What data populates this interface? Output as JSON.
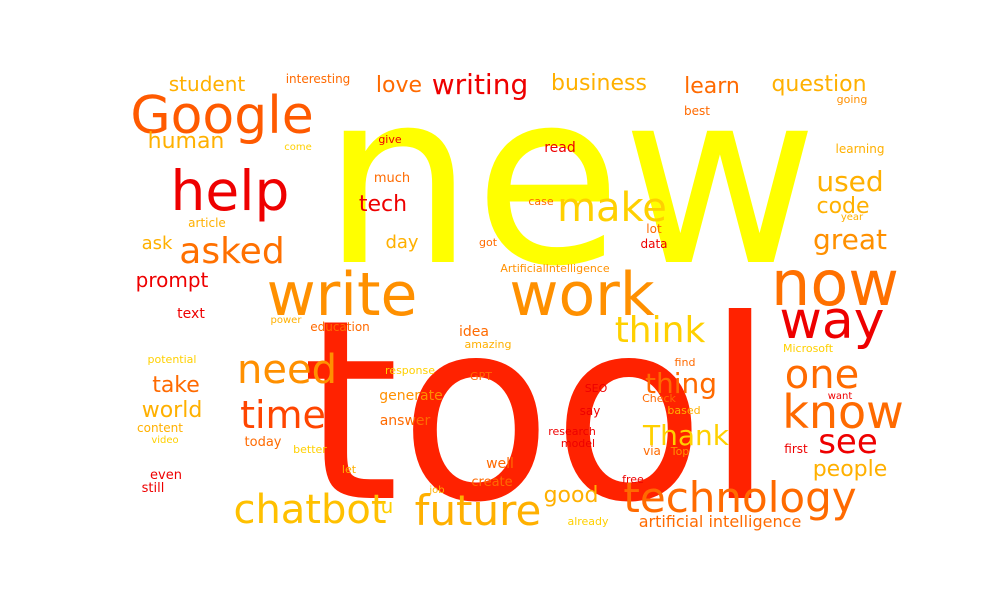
{
  "palette": {
    "yellow": "#ffff00",
    "gold": "#ffd000",
    "amber": "#ffb000",
    "orange": "#ff9000",
    "dark_orange": "#ff6a00",
    "red_orange": "#ff3a00",
    "red": "#ee0000"
  },
  "words": [
    {
      "text": "new",
      "color": "#ffff00"
    },
    {
      "text": "tool",
      "color": "#ff2200"
    },
    {
      "text": "write",
      "color": "#ff9000"
    },
    {
      "text": "work",
      "color": "#ff9000"
    },
    {
      "text": "now",
      "color": "#ff7000"
    },
    {
      "text": "Google",
      "color": "#ff5a00"
    },
    {
      "text": "help",
      "color": "#ee0000"
    },
    {
      "text": "technology",
      "color": "#ff6a00"
    },
    {
      "text": "chatbot",
      "color": "#ffc000"
    },
    {
      "text": "future",
      "color": "#ffb000"
    },
    {
      "text": "way",
      "color": "#ee0000"
    },
    {
      "text": "know",
      "color": "#ff6a00"
    },
    {
      "text": "one",
      "color": "#ff6a00"
    },
    {
      "text": "need",
      "color": "#ff9000"
    },
    {
      "text": "time",
      "color": "#ff4500"
    },
    {
      "text": "make",
      "color": "#ffd000"
    },
    {
      "text": "asked",
      "color": "#ff7000"
    },
    {
      "text": "think",
      "color": "#ffd000"
    },
    {
      "text": "see",
      "color": "#ee0000"
    },
    {
      "text": "great",
      "color": "#ff9000"
    },
    {
      "text": "used",
      "color": "#ffb000"
    },
    {
      "text": "thing",
      "color": "#ff6a00"
    },
    {
      "text": "Thank",
      "color": "#ffd000"
    },
    {
      "text": "people",
      "color": "#ffb000"
    },
    {
      "text": "writing",
      "color": "#ee0000"
    },
    {
      "text": "business",
      "color": "#ffb000"
    },
    {
      "text": "question",
      "color": "#ffb000"
    },
    {
      "text": "love",
      "color": "#ff6a00"
    },
    {
      "text": "student",
      "color": "#ffb000"
    },
    {
      "text": "human",
      "color": "#ffb000"
    },
    {
      "text": "learn",
      "color": "#ff6a00"
    },
    {
      "text": "code",
      "color": "#ffb000"
    },
    {
      "text": "tech",
      "color": "#ee0000"
    },
    {
      "text": "take",
      "color": "#ff6a00"
    },
    {
      "text": "world",
      "color": "#ffb000"
    },
    {
      "text": "good",
      "color": "#ffb000"
    },
    {
      "text": "prompt",
      "color": "#ee0000"
    },
    {
      "text": "ask",
      "color": "#ffb000"
    },
    {
      "text": "day",
      "color": "#ffb000"
    },
    {
      "text": "u",
      "color": "#ffd000"
    },
    {
      "text": "artificial intelligence",
      "color": "#ff6a00"
    },
    {
      "text": "interesting",
      "color": "#ff6a00"
    },
    {
      "text": "come",
      "color": "#ffd000"
    },
    {
      "text": "give",
      "color": "#ee0000"
    },
    {
      "text": "read",
      "color": "#ee0000"
    },
    {
      "text": "best",
      "color": "#ff6a00"
    },
    {
      "text": "going",
      "color": "#ff9000"
    },
    {
      "text": "learning",
      "color": "#ffb000"
    },
    {
      "text": "year",
      "color": "#ffb000"
    },
    {
      "text": "much",
      "color": "#ff6a00"
    },
    {
      "text": "case",
      "color": "#ff6a00"
    },
    {
      "text": "article",
      "color": "#ffb000"
    },
    {
      "text": "lot",
      "color": "#ff6a00"
    },
    {
      "text": "data",
      "color": "#ee0000"
    },
    {
      "text": "got",
      "color": "#ff6a00"
    },
    {
      "text": "ArtificialIntelligence",
      "color": "#ff9000"
    },
    {
      "text": "text",
      "color": "#ee0000"
    },
    {
      "text": "power",
      "color": "#ffb000"
    },
    {
      "text": "education",
      "color": "#ff6a00"
    },
    {
      "text": "idea",
      "color": "#ff6a00"
    },
    {
      "text": "amazing",
      "color": "#ffb000"
    },
    {
      "text": "potential",
      "color": "#ffd000"
    },
    {
      "text": "response",
      "color": "#ffd000"
    },
    {
      "text": "GPT",
      "color": "#ff6a00"
    },
    {
      "text": "find",
      "color": "#ff6a00"
    },
    {
      "text": "Microsoft",
      "color": "#ffd000"
    },
    {
      "text": "generate",
      "color": "#ff9000"
    },
    {
      "text": "SEO",
      "color": "#ee0000"
    },
    {
      "text": "Check",
      "color": "#ff6a00"
    },
    {
      "text": "based",
      "color": "#ffb000"
    },
    {
      "text": "want",
      "color": "#ee0000"
    },
    {
      "text": "content",
      "color": "#ffb000"
    },
    {
      "text": "video",
      "color": "#ffd000"
    },
    {
      "text": "answer",
      "color": "#ff6a00"
    },
    {
      "text": "say",
      "color": "#ee0000"
    },
    {
      "text": "research",
      "color": "#ee0000"
    },
    {
      "text": "model",
      "color": "#ee0000"
    },
    {
      "text": "via",
      "color": "#ff6a00"
    },
    {
      "text": "Top",
      "color": "#ff9000"
    },
    {
      "text": "first",
      "color": "#ee0000"
    },
    {
      "text": "today",
      "color": "#ff6a00"
    },
    {
      "text": "better",
      "color": "#ffd000"
    },
    {
      "text": "let",
      "color": "#ffb000"
    },
    {
      "text": "well",
      "color": "#ff6a00"
    },
    {
      "text": "free",
      "color": "#ee0000"
    },
    {
      "text": "even",
      "color": "#ee0000"
    },
    {
      "text": "still",
      "color": "#ee0000"
    },
    {
      "text": "job",
      "color": "#ffb000"
    },
    {
      "text": "create",
      "color": "#ff6a00"
    },
    {
      "text": "already",
      "color": "#ffd000"
    }
  ]
}
